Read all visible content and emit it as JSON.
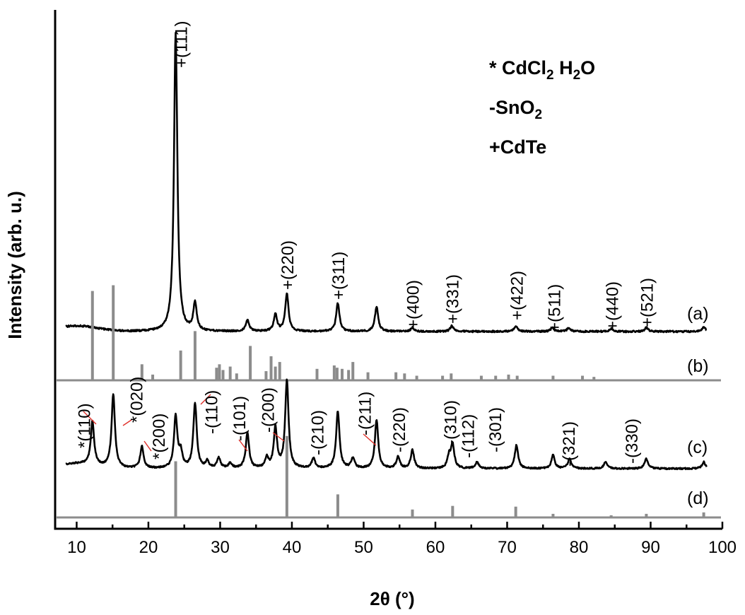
{
  "chart_data": {
    "type": "line",
    "xlabel": "2θ (°)",
    "ylabel": "Intensity (arb. u.)",
    "xlim": [
      7,
      100
    ],
    "xticks": [
      "10",
      "20",
      "30",
      "40",
      "50",
      "60",
      "70",
      "80",
      "90",
      "100"
    ],
    "yticks_shown": false,
    "legend": [
      {
        "marker": "*",
        "text": "CdCl",
        "sub": "2",
        "text2": " H",
        "sub2": "2",
        "text3": "O"
      },
      {
        "marker": "-",
        "text": "SnO",
        "sub": "2",
        "text2": "",
        "sub2": "",
        "text3": ""
      },
      {
        "marker": "+",
        "text": "CdTe",
        "sub": "",
        "text2": "",
        "sub2": "",
        "text3": ""
      }
    ],
    "legend_position": "top-right",
    "series": [
      {
        "name": "(a)",
        "color": "#000000",
        "style": "pattern",
        "baseline": 0.585,
        "slope": 0.0,
        "peaks": [
          [
            23.8,
            3.2
          ],
          [
            26.5,
            0.3
          ],
          [
            33.8,
            0.12
          ],
          [
            37.7,
            0.18
          ],
          [
            39.3,
            0.4
          ],
          [
            46.4,
            0.3
          ],
          [
            51.8,
            0.26
          ],
          [
            56.8,
            0.04
          ],
          [
            62.3,
            0.06
          ],
          [
            71.2,
            0.06
          ],
          [
            76.3,
            0.04
          ],
          [
            78.6,
            0.04
          ],
          [
            84.5,
            0.03
          ],
          [
            89.4,
            0.04
          ],
          [
            97.4,
            0.05
          ]
        ]
      },
      {
        "name": "(b)",
        "color": "#8c8c8c",
        "style": "stick",
        "baseline": 0.0,
        "sticks": [
          [
            12.2,
            0.78
          ],
          [
            15.1,
            0.83
          ],
          [
            19.1,
            0.14
          ],
          [
            20.6,
            0.05
          ],
          [
            24.5,
            0.26
          ],
          [
            26.5,
            0.43
          ],
          [
            29.5,
            0.11
          ],
          [
            29.9,
            0.14
          ],
          [
            30.4,
            0.09
          ],
          [
            31.4,
            0.12
          ],
          [
            32.3,
            0.06
          ],
          [
            34.2,
            0.3
          ],
          [
            36.4,
            0.08
          ],
          [
            37.1,
            0.21
          ],
          [
            37.7,
            0.12
          ],
          [
            38.3,
            0.16
          ],
          [
            43.5,
            0.1
          ],
          [
            45.9,
            0.13
          ],
          [
            46.3,
            0.11
          ],
          [
            47.0,
            0.1
          ],
          [
            47.9,
            0.09
          ],
          [
            48.5,
            0.16
          ],
          [
            50.6,
            0.07
          ],
          [
            54.5,
            0.07
          ],
          [
            55.7,
            0.06
          ],
          [
            57.4,
            0.04
          ],
          [
            61.0,
            0.04
          ],
          [
            62.2,
            0.06
          ],
          [
            66.4,
            0.04
          ],
          [
            68.4,
            0.04
          ],
          [
            70.2,
            0.05
          ],
          [
            71.4,
            0.04
          ],
          [
            76.4,
            0.04
          ],
          [
            80.5,
            0.04
          ],
          [
            82.1,
            0.03
          ]
        ]
      },
      {
        "name": "(c)",
        "color": "#000000",
        "style": "pattern",
        "baseline": 1.07,
        "slope": 0.0,
        "peaks": [
          [
            12.2,
            0.52
          ],
          [
            15.1,
            0.88
          ],
          [
            19.1,
            0.26
          ],
          [
            23.8,
            0.62
          ],
          [
            24.5,
            0.18
          ],
          [
            26.5,
            0.78
          ],
          [
            28.2,
            0.08
          ],
          [
            29.8,
            0.12
          ],
          [
            31.4,
            0.06
          ],
          [
            33.8,
            0.42
          ],
          [
            36.5,
            0.12
          ],
          [
            37.7,
            0.48
          ],
          [
            39.3,
            1.05
          ],
          [
            43.0,
            0.12
          ],
          [
            46.4,
            0.68
          ],
          [
            48.5,
            0.12
          ],
          [
            51.8,
            0.58
          ],
          [
            54.8,
            0.14
          ],
          [
            56.8,
            0.22
          ],
          [
            61.9,
            0.14
          ],
          [
            62.4,
            0.28
          ],
          [
            65.8,
            0.08
          ],
          [
            71.3,
            0.28
          ],
          [
            76.4,
            0.16
          ],
          [
            78.7,
            0.12
          ],
          [
            83.7,
            0.08
          ],
          [
            89.4,
            0.12
          ],
          [
            97.4,
            0.08
          ]
        ]
      },
      {
        "name": "(d)",
        "color": "#8c8c8c",
        "style": "stick",
        "baseline": 0.0,
        "sticks": [
          [
            23.8,
            0.78
          ],
          [
            39.3,
            1.13
          ],
          [
            46.4,
            0.32
          ],
          [
            56.8,
            0.11
          ],
          [
            62.4,
            0.16
          ],
          [
            71.2,
            0.15
          ],
          [
            76.4,
            0.05
          ],
          [
            84.5,
            0.03
          ],
          [
            89.4,
            0.05
          ],
          [
            97.4,
            0.07
          ]
        ]
      }
    ],
    "annotations": {
      "a": [
        {
          "text": "+(111)",
          "x": 24.5
        },
        {
          "text": "+(220)",
          "x": 39.3
        },
        {
          "text": "+(311)",
          "x": 46.4
        },
        {
          "text": "+(400)",
          "x": 56.8
        },
        {
          "text": "+(331)",
          "x": 62.3
        },
        {
          "text": "+(422)",
          "x": 71.3
        },
        {
          "text": "+(511)",
          "x": 76.5
        },
        {
          "text": "+(440)",
          "x": 84.6
        },
        {
          "text": "+(521)",
          "x": 89.4
        }
      ],
      "c": [
        {
          "text": "*(110)",
          "x": 11.0
        },
        {
          "text": "*(020)",
          "x": 18.3
        },
        {
          "text": "*(200)",
          "x": 21.4
        },
        {
          "text": "-(110)",
          "x": 28.7
        },
        {
          "text": "-(101)",
          "x": 32.6
        },
        {
          "text": "-(200)",
          "x": 36.6
        },
        {
          "text": "-(210)",
          "x": 43.5
        },
        {
          "text": "-(211)",
          "x": 50.1
        },
        {
          "text": "-(220)",
          "x": 54.9
        },
        {
          "text": "-(310)",
          "x": 62.0
        },
        {
          "text": "-(112)",
          "x": 64.5
        },
        {
          "text": "-(301)",
          "x": 68.3
        },
        {
          "text": "-(321)",
          "x": 78.5
        },
        {
          "text": "-(330)",
          "x": 87.3
        }
      ]
    },
    "trace_labels": [
      "(a)",
      "(b)",
      "(c)",
      "(d)"
    ]
  }
}
